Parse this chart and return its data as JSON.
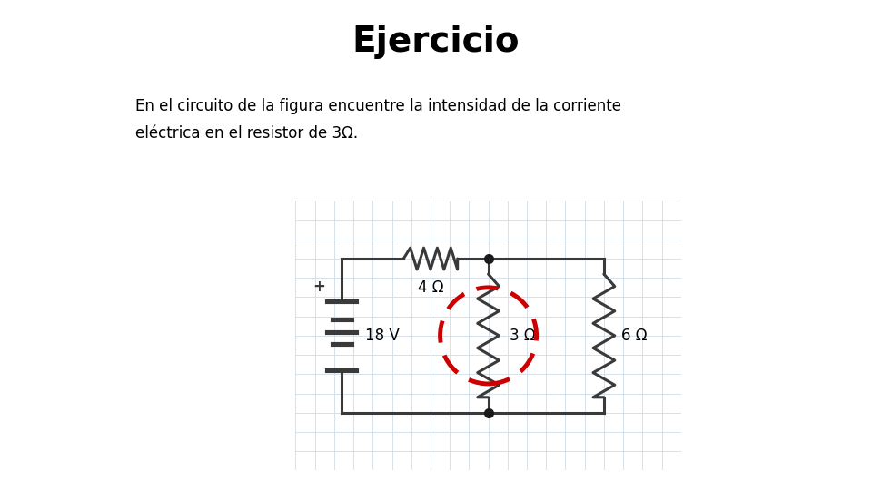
{
  "title": "Ejercicio",
  "title_fontsize": 28,
  "title_fontweight": "bold",
  "subtitle_line1": "En el circuito de la figura encuentre la intensidad de la corriente",
  "subtitle_line2": "eléctrica en el resistor de 3Ω.",
  "subtitle_fontsize": 12,
  "bg_color": "#ffffff",
  "grid_color": "#d0dce8",
  "circuit_color": "#3a3a3a",
  "circuit_lw": 2.2,
  "dot_color": "#1a1a1a",
  "dot_size": 7,
  "dashed_circle_color": "#cc0000",
  "label_4ohm": "4 Ω",
  "label_3ohm": "3 Ω",
  "label_6ohm": "6 Ω",
  "label_18v": "18 V",
  "label_plus": "+",
  "label_fontsize": 12,
  "fig_width": 9.6,
  "fig_height": 5.4,
  "fig_dpi": 100
}
